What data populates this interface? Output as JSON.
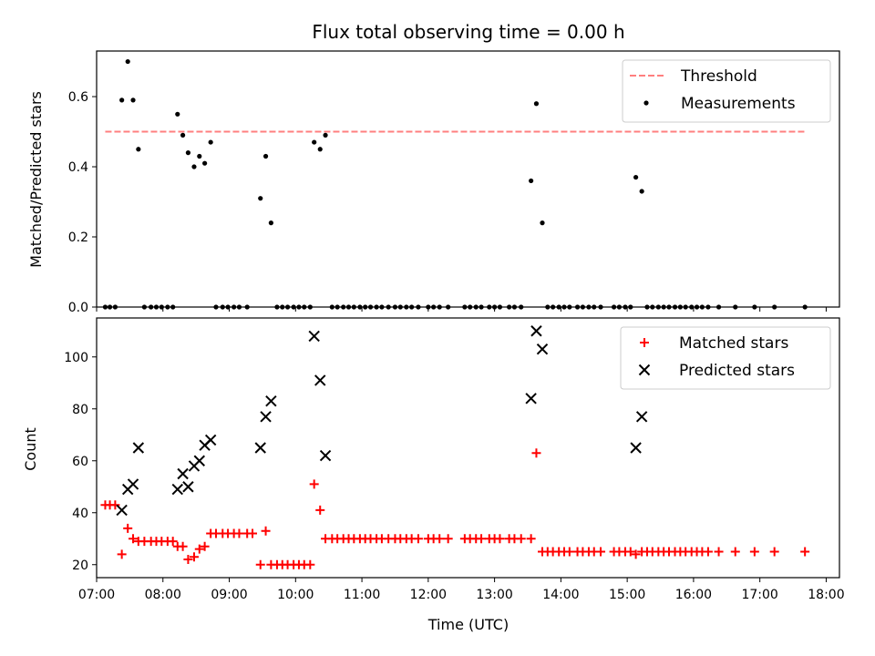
{
  "chart_data": [
    {
      "type": "scatter",
      "title": "Flux total observing time = 0.00 h",
      "ylabel": "Matched/Predicted stars",
      "xlabel": "",
      "xlim": [
        7.0,
        18.2
      ],
      "ylim": [
        0,
        0.73
      ],
      "yticks": [
        "0.0",
        "0.2",
        "0.4",
        "0.6"
      ],
      "legend_position": "top-right",
      "threshold": {
        "name": "Threshold",
        "value": 0.5,
        "x_range": [
          7.13,
          17.68
        ],
        "color": "#ff7f7f",
        "style": "dashed"
      },
      "series": [
        {
          "name": "Measurements",
          "color": "#000000",
          "marker": "dot",
          "points": [
            [
              7.13,
              0
            ],
            [
              7.2,
              0
            ],
            [
              7.28,
              0
            ],
            [
              7.38,
              0.59
            ],
            [
              7.47,
              0.7
            ],
            [
              7.55,
              0.59
            ],
            [
              7.63,
              0.45
            ],
            [
              7.72,
              0
            ],
            [
              7.82,
              0
            ],
            [
              7.9,
              0
            ],
            [
              7.98,
              0
            ],
            [
              8.07,
              0
            ],
            [
              8.15,
              0
            ],
            [
              8.22,
              0.55
            ],
            [
              8.3,
              0.49
            ],
            [
              8.38,
              0.44
            ],
            [
              8.47,
              0.4
            ],
            [
              8.55,
              0.43
            ],
            [
              8.63,
              0.41
            ],
            [
              8.72,
              0.47
            ],
            [
              8.8,
              0
            ],
            [
              8.9,
              0
            ],
            [
              8.98,
              0
            ],
            [
              9.07,
              0
            ],
            [
              9.15,
              0
            ],
            [
              9.27,
              0
            ],
            [
              9.47,
              0.31
            ],
            [
              9.55,
              0.43
            ],
            [
              9.63,
              0.24
            ],
            [
              9.72,
              0
            ],
            [
              9.8,
              0
            ],
            [
              9.88,
              0
            ],
            [
              9.97,
              0
            ],
            [
              10.05,
              0
            ],
            [
              10.13,
              0
            ],
            [
              10.22,
              0
            ],
            [
              10.28,
              0.47
            ],
            [
              10.37,
              0.45
            ],
            [
              10.45,
              0.49
            ],
            [
              10.55,
              0
            ],
            [
              10.63,
              0
            ],
            [
              10.72,
              0
            ],
            [
              10.8,
              0
            ],
            [
              10.88,
              0
            ],
            [
              10.97,
              0
            ],
            [
              11.05,
              0
            ],
            [
              11.13,
              0
            ],
            [
              11.22,
              0
            ],
            [
              11.3,
              0
            ],
            [
              11.4,
              0
            ],
            [
              11.5,
              0
            ],
            [
              11.58,
              0
            ],
            [
              11.67,
              0
            ],
            [
              11.75,
              0
            ],
            [
              11.85,
              0
            ],
            [
              12.0,
              0
            ],
            [
              12.08,
              0
            ],
            [
              12.17,
              0
            ],
            [
              12.3,
              0
            ],
            [
              12.55,
              0
            ],
            [
              12.63,
              0
            ],
            [
              12.72,
              0
            ],
            [
              12.8,
              0
            ],
            [
              12.92,
              0
            ],
            [
              13.0,
              0
            ],
            [
              13.08,
              0
            ],
            [
              13.22,
              0
            ],
            [
              13.3,
              0
            ],
            [
              13.4,
              0
            ],
            [
              13.55,
              0.36
            ],
            [
              13.63,
              0.58
            ],
            [
              13.72,
              0.24
            ],
            [
              13.8,
              0
            ],
            [
              13.88,
              0
            ],
            [
              13.97,
              0
            ],
            [
              14.05,
              0
            ],
            [
              14.13,
              0
            ],
            [
              14.25,
              0
            ],
            [
              14.33,
              0
            ],
            [
              14.42,
              0
            ],
            [
              14.5,
              0
            ],
            [
              14.6,
              0
            ],
            [
              14.8,
              0
            ],
            [
              14.88,
              0
            ],
            [
              14.97,
              0
            ],
            [
              15.05,
              0
            ],
            [
              15.13,
              0.37
            ],
            [
              15.22,
              0.33
            ],
            [
              15.3,
              0
            ],
            [
              15.38,
              0
            ],
            [
              15.47,
              0
            ],
            [
              15.55,
              0
            ],
            [
              15.63,
              0
            ],
            [
              15.72,
              0
            ],
            [
              15.8,
              0
            ],
            [
              15.88,
              0
            ],
            [
              15.97,
              0
            ],
            [
              16.05,
              0
            ],
            [
              16.13,
              0
            ],
            [
              16.22,
              0
            ],
            [
              16.38,
              0
            ],
            [
              16.63,
              0
            ],
            [
              16.92,
              0
            ],
            [
              17.22,
              0
            ],
            [
              17.68,
              0
            ]
          ]
        }
      ]
    },
    {
      "type": "scatter",
      "title": "",
      "xlabel": "Time (UTC)",
      "ylabel": "Count",
      "xlim": [
        7.0,
        18.2
      ],
      "ylim": [
        15,
        115
      ],
      "yticks": [
        "20",
        "40",
        "60",
        "80",
        "100"
      ],
      "xticks": [
        "07:00",
        "08:00",
        "09:00",
        "10:00",
        "11:00",
        "12:00",
        "13:00",
        "14:00",
        "15:00",
        "16:00",
        "17:00",
        "18:00"
      ],
      "legend_position": "top-right",
      "series": [
        {
          "name": "Matched stars",
          "color": "#ff0000",
          "marker": "plus",
          "points": [
            [
              7.13,
              43
            ],
            [
              7.2,
              43
            ],
            [
              7.28,
              43
            ],
            [
              7.38,
              24
            ],
            [
              7.47,
              34
            ],
            [
              7.55,
              30
            ],
            [
              7.63,
              29
            ],
            [
              7.72,
              29
            ],
            [
              7.82,
              29
            ],
            [
              7.9,
              29
            ],
            [
              7.98,
              29
            ],
            [
              8.07,
              29
            ],
            [
              8.15,
              29
            ],
            [
              8.22,
              27
            ],
            [
              8.3,
              27
            ],
            [
              8.38,
              22
            ],
            [
              8.47,
              23
            ],
            [
              8.55,
              26
            ],
            [
              8.63,
              27
            ],
            [
              8.72,
              32
            ],
            [
              8.8,
              32
            ],
            [
              8.9,
              32
            ],
            [
              8.98,
              32
            ],
            [
              9.07,
              32
            ],
            [
              9.15,
              32
            ],
            [
              9.27,
              32
            ],
            [
              9.35,
              32
            ],
            [
              9.47,
              20
            ],
            [
              9.55,
              33
            ],
            [
              9.63,
              20
            ],
            [
              9.72,
              20
            ],
            [
              9.8,
              20
            ],
            [
              9.88,
              20
            ],
            [
              9.97,
              20
            ],
            [
              10.05,
              20
            ],
            [
              10.13,
              20
            ],
            [
              10.22,
              20
            ],
            [
              10.28,
              51
            ],
            [
              10.37,
              41
            ],
            [
              10.45,
              30
            ],
            [
              10.55,
              30
            ],
            [
              10.63,
              30
            ],
            [
              10.72,
              30
            ],
            [
              10.8,
              30
            ],
            [
              10.88,
              30
            ],
            [
              10.97,
              30
            ],
            [
              11.05,
              30
            ],
            [
              11.13,
              30
            ],
            [
              11.22,
              30
            ],
            [
              11.3,
              30
            ],
            [
              11.4,
              30
            ],
            [
              11.5,
              30
            ],
            [
              11.58,
              30
            ],
            [
              11.67,
              30
            ],
            [
              11.75,
              30
            ],
            [
              11.85,
              30
            ],
            [
              12.0,
              30
            ],
            [
              12.08,
              30
            ],
            [
              12.17,
              30
            ],
            [
              12.3,
              30
            ],
            [
              12.55,
              30
            ],
            [
              12.63,
              30
            ],
            [
              12.72,
              30
            ],
            [
              12.8,
              30
            ],
            [
              12.92,
              30
            ],
            [
              13.0,
              30
            ],
            [
              13.08,
              30
            ],
            [
              13.22,
              30
            ],
            [
              13.3,
              30
            ],
            [
              13.4,
              30
            ],
            [
              13.55,
              30
            ],
            [
              13.63,
              63
            ],
            [
              13.72,
              25
            ],
            [
              13.8,
              25
            ],
            [
              13.88,
              25
            ],
            [
              13.97,
              25
            ],
            [
              14.05,
              25
            ],
            [
              14.13,
              25
            ],
            [
              14.25,
              25
            ],
            [
              14.33,
              25
            ],
            [
              14.42,
              25
            ],
            [
              14.5,
              25
            ],
            [
              14.6,
              25
            ],
            [
              14.8,
              25
            ],
            [
              14.88,
              25
            ],
            [
              14.97,
              25
            ],
            [
              15.05,
              25
            ],
            [
              15.13,
              24
            ],
            [
              15.22,
              25
            ],
            [
              15.3,
              25
            ],
            [
              15.38,
              25
            ],
            [
              15.47,
              25
            ],
            [
              15.55,
              25
            ],
            [
              15.63,
              25
            ],
            [
              15.72,
              25
            ],
            [
              15.8,
              25
            ],
            [
              15.88,
              25
            ],
            [
              15.97,
              25
            ],
            [
              16.05,
              25
            ],
            [
              16.13,
              25
            ],
            [
              16.22,
              25
            ],
            [
              16.38,
              25
            ],
            [
              16.63,
              25
            ],
            [
              16.92,
              25
            ],
            [
              17.22,
              25
            ],
            [
              17.68,
              25
            ]
          ]
        },
        {
          "name": "Predicted stars",
          "color": "#000000",
          "marker": "x",
          "points": [
            [
              7.38,
              41
            ],
            [
              7.47,
              49
            ],
            [
              7.55,
              51
            ],
            [
              7.63,
              65
            ],
            [
              8.22,
              49
            ],
            [
              8.3,
              55
            ],
            [
              8.38,
              50
            ],
            [
              8.47,
              58
            ],
            [
              8.55,
              60
            ],
            [
              8.63,
              66
            ],
            [
              8.72,
              68
            ],
            [
              9.47,
              65
            ],
            [
              9.55,
              77
            ],
            [
              9.63,
              83
            ],
            [
              10.28,
              108
            ],
            [
              10.37,
              91
            ],
            [
              10.45,
              62
            ],
            [
              13.55,
              84
            ],
            [
              13.63,
              110
            ],
            [
              13.72,
              103
            ],
            [
              15.13,
              65
            ],
            [
              15.22,
              77
            ]
          ]
        }
      ]
    }
  ]
}
